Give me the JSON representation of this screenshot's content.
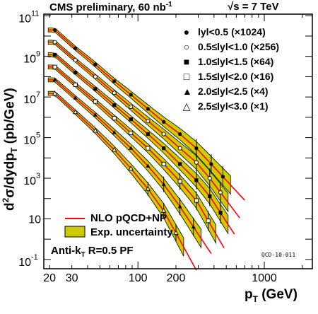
{
  "chart_data": {
    "type": "scatter",
    "title": "CMS preliminary, 60 nb",
    "title_sup": "-1",
    "energy_label": "√s = 7 TeV",
    "ylabel_parts": [
      "d",
      "2",
      "σ/dydp",
      "T",
      " (pb/GeV)"
    ],
    "xlabel_main": "p",
    "xlabel_sub": "T",
    "xlabel_unit": " (GeV)",
    "x_scale": "log",
    "y_scale": "log",
    "xlim": [
      18,
      2400
    ],
    "ylim": [
      0.035,
      120000000000
    ],
    "x_ticks": [
      {
        "value": 20,
        "label": "20"
      },
      {
        "value": 30,
        "label": "30"
      },
      {
        "value": 100,
        "label": "100"
      },
      {
        "value": 200,
        "label": "200"
      },
      {
        "value": 1000,
        "label": "1000"
      }
    ],
    "y_ticks": [
      {
        "value": 0.1,
        "label": "10",
        "sup": "-1"
      },
      {
        "value": 10,
        "label": "10",
        "sup": ""
      },
      {
        "value": 1000,
        "label": "10",
        "sup": "3"
      },
      {
        "value": 100000,
        "label": "10",
        "sup": "5"
      },
      {
        "value": 10000000,
        "label": "10",
        "sup": "7"
      },
      {
        "value": 1000000000,
        "label": "10",
        "sup": "9"
      },
      {
        "value": 100000000000,
        "label": "10",
        "sup": "11"
      }
    ],
    "legend_series": [
      {
        "symbol": "●",
        "label": "lyl<0.5 (×1024)"
      },
      {
        "symbol": "○",
        "label": "0.5≤lyl<1.0 (×256)"
      },
      {
        "symbol": "■",
        "label": "1.0≤lyl<1.5 (×64)"
      },
      {
        "symbol": "□",
        "label": "1.5≤lyl<2.0 (×16)"
      },
      {
        "symbol": "▲",
        "label": "2.0≤lyl<2.5 (×4)"
      },
      {
        "symbol": "△",
        "label": "2.5≤lyl<3.0 (×1)"
      }
    ],
    "legend_bottom": [
      {
        "symbol": "line",
        "label": "NLO pQCD+NP"
      },
      {
        "symbol": "band",
        "label": "Exp. uncertainty"
      }
    ],
    "algo_label": "Anti-k",
    "algo_sub": "T",
    "algo_rest": " R=0.5 PF",
    "ref_label": "QCD-10-011",
    "series": [
      {
        "name": "lyl<0.5 (×1024)",
        "marker": "filled-circle",
        "x_end": 700,
        "points": [
          [
            22,
            20000000000
          ],
          [
            32,
            2500000000
          ],
          [
            46,
            400000000
          ],
          [
            65,
            60000000
          ],
          [
            88,
            13000000
          ],
          [
            120,
            2600000
          ],
          [
            160,
            600000
          ],
          [
            215,
            150000
          ],
          [
            290,
            30000
          ],
          [
            380,
            5000
          ],
          [
            470,
            1200
          ]
        ]
      },
      {
        "name": "0.5≤lyl<1.0 (×256)",
        "marker": "open-circle",
        "x_end": 640,
        "points": [
          [
            22,
            5000000000
          ],
          [
            32,
            650000000
          ],
          [
            46,
            100000000
          ],
          [
            65,
            16000000
          ],
          [
            88,
            3300000
          ],
          [
            120,
            650000
          ],
          [
            160,
            150000
          ],
          [
            215,
            30000
          ],
          [
            290,
            6000
          ],
          [
            370,
            1000
          ],
          [
            450,
            200
          ]
        ]
      },
      {
        "name": "1.0≤lyl<1.5 (×64)",
        "marker": "filled-square",
        "x_end": 580,
        "points": [
          [
            22,
            1200000000
          ],
          [
            32,
            160000000
          ],
          [
            46,
            25000000
          ],
          [
            65,
            4000000
          ],
          [
            88,
            800000
          ],
          [
            120,
            150000
          ],
          [
            160,
            30000
          ],
          [
            215,
            5000
          ],
          [
            290,
            800
          ],
          [
            370,
            130
          ],
          [
            450,
            20
          ]
        ]
      },
      {
        "name": "1.5≤lyl<2.0 (×16)",
        "marker": "open-square",
        "x_end": 480,
        "points": [
          [
            22,
            300000000
          ],
          [
            32,
            40000000
          ],
          [
            46,
            6000000
          ],
          [
            65,
            900000
          ],
          [
            88,
            170000
          ],
          [
            120,
            30000
          ],
          [
            160,
            5000
          ],
          [
            215,
            700
          ],
          [
            290,
            80
          ],
          [
            360,
            8
          ]
        ]
      },
      {
        "name": "2.0≤lyl<2.5 (×4)",
        "marker": "filled-triangle",
        "x_end": 380,
        "points": [
          [
            22,
            70000000
          ],
          [
            32,
            9000000
          ],
          [
            46,
            1300000
          ],
          [
            65,
            180000
          ],
          [
            88,
            30000
          ],
          [
            120,
            4000
          ],
          [
            160,
            500
          ],
          [
            215,
            40
          ],
          [
            275,
            4
          ]
        ]
      },
      {
        "name": "2.5≤lyl<3.0 (×1)",
        "marker": "open-triangle",
        "x_end": 290,
        "points": [
          [
            22,
            15000000
          ],
          [
            32,
            1800000
          ],
          [
            46,
            220000
          ],
          [
            65,
            25000
          ],
          [
            88,
            3000
          ],
          [
            120,
            300
          ],
          [
            160,
            25
          ],
          [
            200,
            2
          ]
        ]
      }
    ],
    "colors": {
      "theory_line": "#ff0000",
      "uncertainty_band": "#cccc00",
      "band_edge": "#000000",
      "markers": "#000000"
    }
  }
}
